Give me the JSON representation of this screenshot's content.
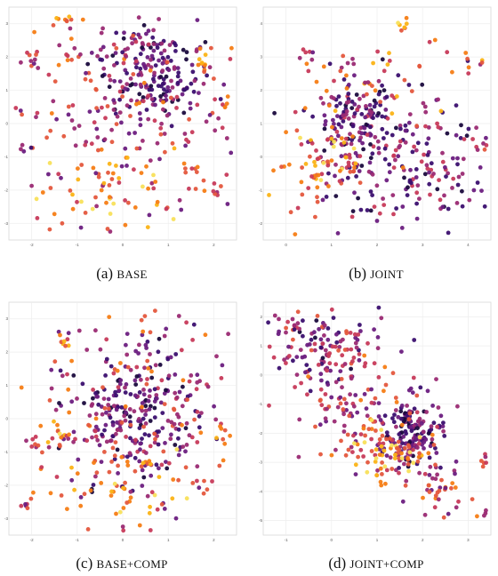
{
  "captions": [
    {
      "tag": "(a)",
      "name": "BASE"
    },
    {
      "tag": "(b)",
      "name": "JOINT"
    },
    {
      "tag": "(c)",
      "name": "BASE+COMP"
    },
    {
      "tag": "(d)",
      "name": "JOINT+COMP"
    }
  ],
  "chart_data": [
    {
      "type": "scatter",
      "title": "(a) BASE",
      "colormap": "inferno",
      "colors": [
        "#1a0a3d",
        "#3b0f6f",
        "#6b1d80",
        "#9a2a73",
        "#c73a5a",
        "#e4573d",
        "#f57d15",
        "#fbb316",
        "#f8e05a"
      ],
      "xlim": [
        -2.5,
        2.5
      ],
      "ylim": [
        -3,
        3
      ],
      "grid": true,
      "xticks": [
        "-2",
        "-1",
        "0",
        "1",
        "2"
      ],
      "yticks": [
        "-3",
        "-2",
        "-1",
        "0",
        "1",
        "2",
        "3"
      ],
      "layout_seed": 11,
      "clusters": [
        {
          "cx": 0.62,
          "cy": 0.3,
          "sx": 0.13,
          "sy": 0.12,
          "n": 220,
          "c": [
            0.0,
            0.45
          ]
        },
        {
          "cx": 0.52,
          "cy": 0.52,
          "sx": 0.28,
          "sy": 0.28,
          "n": 190,
          "c": [
            0.25,
            0.75
          ]
        },
        {
          "cx": 0.45,
          "cy": 0.78,
          "sx": 0.18,
          "sy": 0.1,
          "n": 45,
          "c": [
            0.55,
            1.0
          ]
        },
        {
          "cx": 0.24,
          "cy": 0.06,
          "sx": 0.03,
          "sy": 0.02,
          "n": 8,
          "c": [
            0.6,
            1.0
          ]
        },
        {
          "cx": 0.1,
          "cy": 0.22,
          "sx": 0.02,
          "sy": 0.02,
          "n": 7,
          "c": [
            0.2,
            0.6
          ]
        },
        {
          "cx": 0.07,
          "cy": 0.62,
          "sx": 0.015,
          "sy": 0.015,
          "n": 4,
          "c": [
            0.1,
            0.5
          ]
        },
        {
          "cx": 0.91,
          "cy": 0.77,
          "sx": 0.015,
          "sy": 0.02,
          "n": 6,
          "c": [
            0.4,
            0.7
          ]
        },
        {
          "cx": 0.86,
          "cy": 0.24,
          "sx": 0.03,
          "sy": 0.03,
          "n": 8,
          "c": [
            0.6,
            1.0
          ]
        },
        {
          "cx": 0.95,
          "cy": 0.4,
          "sx": 0.02,
          "sy": 0.03,
          "n": 5,
          "c": [
            0.5,
            0.9
          ]
        }
      ]
    },
    {
      "type": "scatter",
      "title": "(b) JOINT",
      "colormap": "inferno",
      "colors": [
        "#1a0a3d",
        "#3b0f6f",
        "#6b1d80",
        "#9a2a73",
        "#c73a5a",
        "#e4573d",
        "#f57d15",
        "#fbb316",
        "#f8e05a"
      ],
      "xlim": [
        -1,
        4
      ],
      "ylim": [
        -3,
        4
      ],
      "grid": true,
      "xticks": [
        "0",
        "1",
        "2",
        "3",
        "4"
      ],
      "yticks": [
        "-2",
        "-1",
        "0",
        "1",
        "2",
        "3",
        "4"
      ],
      "layout_seed": 23,
      "clusters": [
        {
          "cx": 0.4,
          "cy": 0.48,
          "sx": 0.1,
          "sy": 0.09,
          "n": 140,
          "c": [
            0.0,
            0.5
          ]
        },
        {
          "cx": 0.68,
          "cy": 0.68,
          "sx": 0.22,
          "sy": 0.16,
          "n": 200,
          "c": [
            0.0,
            0.55
          ]
        },
        {
          "cx": 0.27,
          "cy": 0.68,
          "sx": 0.1,
          "sy": 0.1,
          "n": 70,
          "c": [
            0.45,
            1.0
          ]
        },
        {
          "cx": 0.5,
          "cy": 0.3,
          "sx": 0.16,
          "sy": 0.12,
          "n": 45,
          "c": [
            0.35,
            0.9
          ]
        },
        {
          "cx": 0.62,
          "cy": 0.06,
          "sx": 0.02,
          "sy": 0.02,
          "n": 6,
          "c": [
            0.6,
            1.0
          ]
        },
        {
          "cx": 0.18,
          "cy": 0.2,
          "sx": 0.02,
          "sy": 0.02,
          "n": 6,
          "c": [
            0.2,
            0.6
          ]
        },
        {
          "cx": 0.9,
          "cy": 0.24,
          "sx": 0.04,
          "sy": 0.03,
          "n": 7,
          "c": [
            0.5,
            1.0
          ]
        },
        {
          "cx": 0.95,
          "cy": 0.58,
          "sx": 0.02,
          "sy": 0.05,
          "n": 8,
          "c": [
            0.2,
            0.7
          ]
        }
      ]
    },
    {
      "type": "scatter",
      "title": "(c) BASE+COMP",
      "colormap": "inferno",
      "colors": [
        "#1a0a3d",
        "#3b0f6f",
        "#6b1d80",
        "#9a2a73",
        "#c73a5a",
        "#e4573d",
        "#f57d15",
        "#fbb316",
        "#f8e05a"
      ],
      "xlim": [
        -3,
        3
      ],
      "ylim": [
        -3,
        3
      ],
      "grid": true,
      "xticks": [
        "-2",
        "-1",
        "0",
        "1",
        "2"
      ],
      "yticks": [
        "-3",
        "-2",
        "-1",
        "0",
        "1",
        "2",
        "3"
      ],
      "layout_seed": 37,
      "clusters": [
        {
          "cx": 0.56,
          "cy": 0.48,
          "sx": 0.14,
          "sy": 0.14,
          "n": 230,
          "c": [
            0.0,
            0.45
          ]
        },
        {
          "cx": 0.56,
          "cy": 0.52,
          "sx": 0.28,
          "sy": 0.28,
          "n": 200,
          "c": [
            0.25,
            0.8
          ]
        },
        {
          "cx": 0.5,
          "cy": 0.8,
          "sx": 0.18,
          "sy": 0.09,
          "n": 45,
          "c": [
            0.55,
            1.0
          ]
        },
        {
          "cx": 0.22,
          "cy": 0.56,
          "sx": 0.03,
          "sy": 0.04,
          "n": 12,
          "c": [
            0.55,
            1.0
          ]
        },
        {
          "cx": 0.12,
          "cy": 0.6,
          "sx": 0.02,
          "sy": 0.03,
          "n": 8,
          "c": [
            0.3,
            0.7
          ]
        },
        {
          "cx": 0.07,
          "cy": 0.87,
          "sx": 0.02,
          "sy": 0.01,
          "n": 6,
          "c": [
            0.2,
            0.7
          ]
        },
        {
          "cx": 0.24,
          "cy": 0.17,
          "sx": 0.02,
          "sy": 0.02,
          "n": 7,
          "c": [
            0.4,
            0.9
          ]
        },
        {
          "cx": 0.93,
          "cy": 0.58,
          "sx": 0.02,
          "sy": 0.03,
          "n": 5,
          "c": [
            0.5,
            1.0
          ]
        }
      ]
    },
    {
      "type": "scatter",
      "title": "(d) JOINT+COMP",
      "colormap": "inferno",
      "colors": [
        "#1a0a3d",
        "#3b0f6f",
        "#6b1d80",
        "#9a2a73",
        "#c73a5a",
        "#e4573d",
        "#f57d15",
        "#fbb316",
        "#f8e05a"
      ],
      "xlim": [
        -2,
        3
      ],
      "ylim": [
        -6,
        3
      ],
      "grid": true,
      "xticks": [
        "-1",
        "0",
        "1",
        "2",
        "3"
      ],
      "yticks": [
        "-5",
        "-4",
        "-3",
        "-2",
        "-1",
        "0",
        "1",
        "2"
      ],
      "layout_seed": 51,
      "clusters": [
        {
          "cx": 0.66,
          "cy": 0.57,
          "sx": 0.07,
          "sy": 0.07,
          "n": 160,
          "c": [
            0.0,
            0.4
          ]
        },
        {
          "cx": 0.28,
          "cy": 0.2,
          "sx": 0.12,
          "sy": 0.09,
          "n": 130,
          "c": [
            0.05,
            0.6
          ]
        },
        {
          "cx": 0.45,
          "cy": 0.45,
          "sx": 0.14,
          "sy": 0.12,
          "n": 110,
          "c": [
            0.2,
            0.75
          ]
        },
        {
          "cx": 0.57,
          "cy": 0.65,
          "sx": 0.1,
          "sy": 0.07,
          "n": 70,
          "c": [
            0.45,
            1.0
          ]
        },
        {
          "cx": 0.8,
          "cy": 0.78,
          "sx": 0.07,
          "sy": 0.06,
          "n": 35,
          "c": [
            0.2,
            0.8
          ]
        },
        {
          "cx": 0.96,
          "cy": 0.68,
          "sx": 0.015,
          "sy": 0.02,
          "n": 6,
          "c": [
            0.3,
            0.7
          ]
        },
        {
          "cx": 0.96,
          "cy": 0.9,
          "sx": 0.015,
          "sy": 0.01,
          "n": 5,
          "c": [
            0.3,
            0.7
          ]
        },
        {
          "cx": 0.12,
          "cy": 0.1,
          "sx": 0.04,
          "sy": 0.03,
          "n": 14,
          "c": [
            0.1,
            0.6
          ]
        }
      ]
    }
  ]
}
